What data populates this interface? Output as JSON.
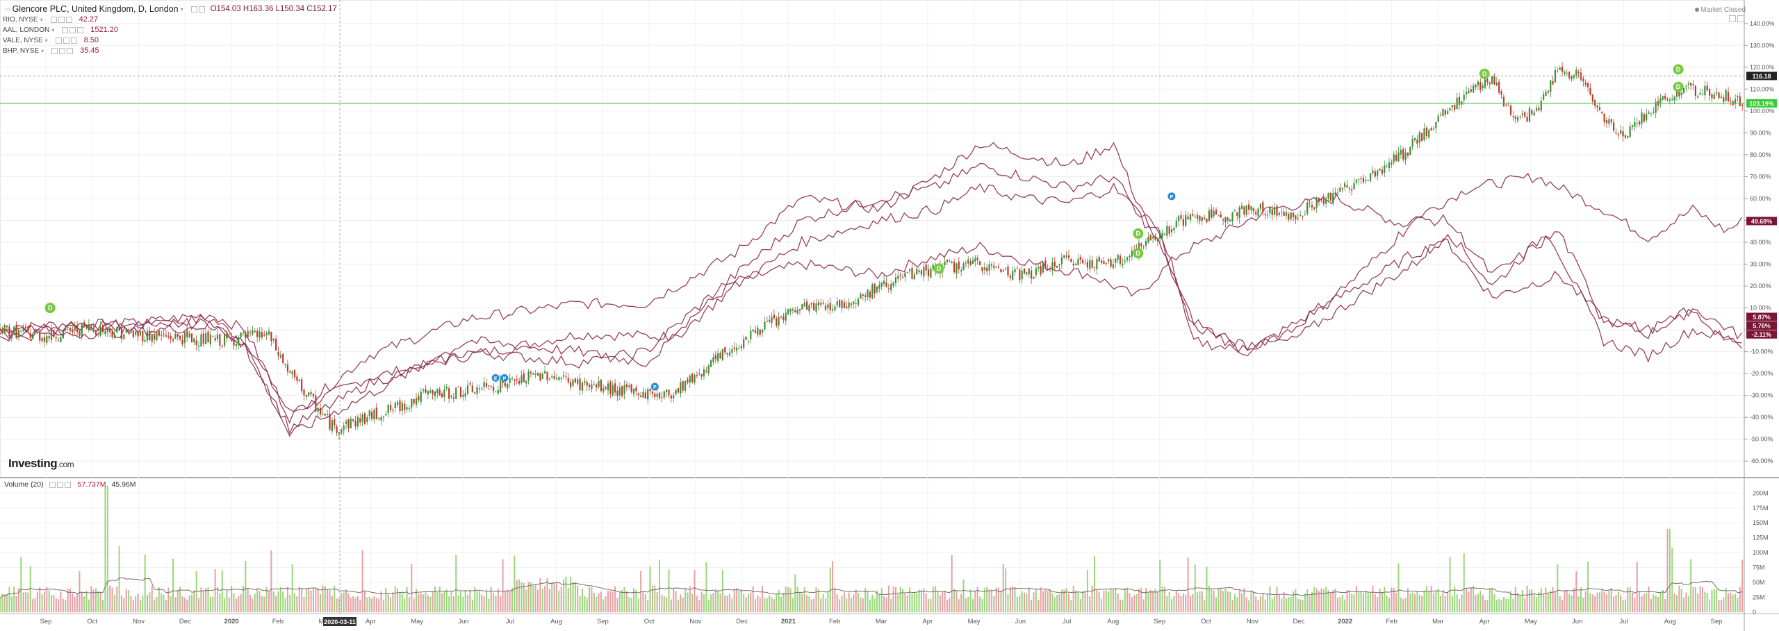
{
  "header": {
    "title": "Glencore PLC, United Kingdom, D, London",
    "ohlc": "O154.03  H163.36  L150.34  C152.17",
    "compare": [
      {
        "symbol": "RIO, NYSE",
        "value": "42.27"
      },
      {
        "symbol": "AAL, LONDON",
        "value": "1521.20"
      },
      {
        "symbol": "VALE, NYSE",
        "value": "8.50"
      },
      {
        "symbol": "BHP, NYSE",
        "value": "35.45"
      }
    ],
    "market_status": "Market Closed"
  },
  "branding": {
    "logo": "Investing",
    "logo_suffix": ".com"
  },
  "volume_panel": {
    "label": "Volume (20)",
    "value1": "57.737M",
    "value2": "45.96M"
  },
  "colors": {
    "up": "#3a8f3a",
    "down": "#c0392b",
    "compare": "#8b2a4a",
    "hline": "#33cc33",
    "event_dividend": "#7ac943",
    "event_blue": "#2a8ad4",
    "vol_up": "#9ad67a",
    "vol_down": "#e6a0a5"
  },
  "chart_data": {
    "type": "line",
    "x_tick_labels": [
      "Sep",
      "Oct",
      "Nov",
      "Dec",
      "2020",
      "Feb",
      "Mar",
      "Apr",
      "May",
      "Jun",
      "Jul",
      "Aug",
      "Sep",
      "Oct",
      "Nov",
      "Dec",
      "2021",
      "Feb",
      "Mar",
      "Apr",
      "May",
      "Jun",
      "Jul",
      "Aug",
      "Sep",
      "Oct",
      "Nov",
      "Dec",
      "2022",
      "Feb",
      "Mar",
      "Apr",
      "May",
      "Jun",
      "Jul",
      "Aug",
      "Sep"
    ],
    "crosshair_date": "2020-03-11",
    "y_ticks": [
      "140.00%",
      "130.00%",
      "120.00%",
      "110.00%",
      "100.00%",
      "90.00%",
      "80.00%",
      "70.00%",
      "60.00%",
      "50.00%",
      "40.00%",
      "30.00%",
      "20.00%",
      "10.00%",
      "0.00%",
      "-10.00%",
      "-20.00%",
      "-30.00%",
      "-40.00%",
      "-50.00%",
      "-60.00%"
    ],
    "ylim": [
      -65,
      145
    ],
    "price_badges": [
      {
        "text": "116.18",
        "y": 116,
        "color": "#222222"
      },
      {
        "text": "103.19%",
        "y": 103.5,
        "color": "#33cc33"
      },
      {
        "text": "49.68%",
        "y": 49.7,
        "color": "#7b1435"
      },
      {
        "text": "5.87%",
        "y": 5.9,
        "color": "#7b1435"
      },
      {
        "text": "5.76%",
        "y": 1.9,
        "color": "#7b1435"
      },
      {
        "text": "-2.11%",
        "y": -2.1,
        "color": "#7b1435"
      }
    ],
    "horizontal_line": 103.5,
    "dashed_line": 116,
    "series": [
      {
        "points": [
          [
            0,
            0
          ],
          [
            60,
            3
          ],
          [
            120,
            2
          ],
          [
            190,
            5
          ],
          [
            220,
            -5
          ],
          [
            260,
            -38
          ],
          [
            330,
            -22
          ],
          [
            420,
            -12
          ],
          [
            520,
            -2
          ],
          [
            600,
            -3
          ],
          [
            660,
            22
          ],
          [
            720,
            30
          ],
          [
            790,
            25
          ],
          [
            830,
            32
          ],
          [
            880,
            38
          ],
          [
            930,
            30
          ],
          [
            980,
            25
          ],
          [
            1020,
            15
          ],
          [
            1060,
            35
          ],
          [
            1090,
            42
          ],
          [
            1140,
            55
          ],
          [
            1200,
            60
          ],
          [
            1260,
            48
          ],
          [
            1320,
            65
          ],
          [
            1380,
            70
          ],
          [
            1440,
            55
          ],
          [
            1480,
            42
          ],
          [
            1520,
            55
          ],
          [
            1550,
            45
          ],
          [
            1565,
            50
          ]
        ]
      },
      {
        "points": [
          [
            0,
            0
          ],
          [
            60,
            2
          ],
          [
            120,
            3
          ],
          [
            190,
            7
          ],
          [
            220,
            0
          ],
          [
            260,
            -40
          ],
          [
            330,
            -12
          ],
          [
            420,
            5
          ],
          [
            520,
            12
          ],
          [
            580,
            12
          ],
          [
            660,
            35
          ],
          [
            720,
            60
          ],
          [
            790,
            55
          ],
          [
            840,
            70
          ],
          [
            880,
            85
          ],
          [
            920,
            80
          ],
          [
            960,
            75
          ],
          [
            1000,
            85
          ],
          [
            1020,
            60
          ],
          [
            1050,
            35
          ],
          [
            1070,
            -5
          ],
          [
            1120,
            -10
          ],
          [
            1160,
            2
          ],
          [
            1220,
            20
          ],
          [
            1270,
            35
          ],
          [
            1300,
            40
          ],
          [
            1340,
            15
          ],
          [
            1400,
            25
          ],
          [
            1440,
            5
          ],
          [
            1480,
            -2
          ],
          [
            1520,
            10
          ],
          [
            1560,
            -2
          ]
        ]
      },
      {
        "points": [
          [
            0,
            -2
          ],
          [
            60,
            0
          ],
          [
            120,
            2
          ],
          [
            190,
            3
          ],
          [
            220,
            -8
          ],
          [
            260,
            -45
          ],
          [
            330,
            -25
          ],
          [
            420,
            -10
          ],
          [
            520,
            -15
          ],
          [
            580,
            -10
          ],
          [
            660,
            25
          ],
          [
            720,
            50
          ],
          [
            790,
            60
          ],
          [
            840,
            65
          ],
          [
            880,
            75
          ],
          [
            920,
            70
          ],
          [
            960,
            65
          ],
          [
            1000,
            70
          ],
          [
            1040,
            40
          ],
          [
            1070,
            5
          ],
          [
            1110,
            -8
          ],
          [
            1160,
            -5
          ],
          [
            1220,
            15
          ],
          [
            1270,
            30
          ],
          [
            1300,
            45
          ],
          [
            1340,
            20
          ],
          [
            1390,
            45
          ],
          [
            1440,
            -5
          ],
          [
            1480,
            -12
          ],
          [
            1520,
            0
          ],
          [
            1560,
            -5
          ]
        ]
      },
      {
        "points": [
          [
            0,
            -3
          ],
          [
            60,
            -2
          ],
          [
            120,
            -1
          ],
          [
            190,
            2
          ],
          [
            220,
            -6
          ],
          [
            260,
            -48
          ],
          [
            330,
            -30
          ],
          [
            420,
            -5
          ],
          [
            520,
            -10
          ],
          [
            580,
            -15
          ],
          [
            660,
            20
          ],
          [
            720,
            40
          ],
          [
            790,
            50
          ],
          [
            840,
            55
          ],
          [
            880,
            65
          ],
          [
            920,
            60
          ],
          [
            960,
            58
          ],
          [
            1000,
            65
          ],
          [
            1040,
            45
          ],
          [
            1070,
            2
          ],
          [
            1120,
            -8
          ],
          [
            1160,
            0
          ],
          [
            1220,
            25
          ],
          [
            1270,
            50
          ],
          [
            1300,
            50
          ],
          [
            1340,
            25
          ],
          [
            1400,
            45
          ],
          [
            1440,
            5
          ],
          [
            1480,
            0
          ],
          [
            1520,
            8
          ],
          [
            1560,
            -8
          ]
        ]
      }
    ],
    "main_line": {
      "points": [
        [
          0,
          0
        ],
        [
          40,
          -3
        ],
        [
          80,
          1
        ],
        [
          120,
          -2
        ],
        [
          170,
          -4
        ],
        [
          200,
          -5
        ],
        [
          240,
          -2
        ],
        [
          260,
          -20
        ],
        [
          300,
          -45
        ],
        [
          330,
          -40
        ],
        [
          360,
          -35
        ],
        [
          380,
          -30
        ],
        [
          420,
          -28
        ],
        [
          460,
          -24
        ],
        [
          490,
          -20
        ],
        [
          520,
          -25
        ],
        [
          560,
          -28
        ],
        [
          600,
          -30
        ],
        [
          640,
          -15
        ],
        [
          680,
          0
        ],
        [
          720,
          10
        ],
        [
          760,
          12
        ],
        [
          800,
          22
        ],
        [
          840,
          28
        ],
        [
          880,
          30
        ],
        [
          920,
          25
        ],
        [
          960,
          32
        ],
        [
          1000,
          30
        ],
        [
          1030,
          40
        ],
        [
          1060,
          50
        ],
        [
          1090,
          52
        ],
        [
          1130,
          55
        ],
        [
          1160,
          52
        ],
        [
          1190,
          60
        ],
        [
          1220,
          68
        ],
        [
          1260,
          80
        ],
        [
          1290,
          95
        ],
        [
          1320,
          110
        ],
        [
          1340,
          115
        ],
        [
          1360,
          95
        ],
        [
          1380,
          100
        ],
        [
          1400,
          120
        ],
        [
          1420,
          115
        ],
        [
          1440,
          95
        ],
        [
          1460,
          90
        ],
        [
          1480,
          100
        ],
        [
          1510,
          110
        ],
        [
          1540,
          108
        ],
        [
          1560,
          105
        ]
      ]
    },
    "events": [
      {
        "x": 45,
        "y": 10,
        "type": "dividend",
        "label": "D"
      },
      {
        "x": 445,
        "y": -22,
        "type": "earnings",
        "label": "E"
      },
      {
        "x": 453,
        "y": -22,
        "type": "earnings",
        "label": "P"
      },
      {
        "x": 588,
        "y": -26,
        "type": "earnings",
        "label": "P"
      },
      {
        "x": 843,
        "y": 28,
        "type": "dividend",
        "label": "D"
      },
      {
        "x": 1022,
        "y": 44,
        "type": "dividend",
        "label": "D"
      },
      {
        "x": 1022,
        "y": 35,
        "type": "dividend",
        "label": "D"
      },
      {
        "x": 1052,
        "y": 61,
        "type": "earnings",
        "label": "P"
      },
      {
        "x": 1333,
        "y": 117,
        "type": "dividend",
        "label": "D"
      },
      {
        "x": 1507,
        "y": 119,
        "type": "dividend",
        "label": "D"
      },
      {
        "x": 1507,
        "y": 111,
        "type": "dividend",
        "label": "D"
      }
    ],
    "volume": {
      "y_ticks": [
        "200M",
        "175M",
        "150M",
        "125M",
        "100M",
        "75M",
        "50M",
        "25M",
        "0"
      ],
      "ylim": [
        0,
        212
      ]
    }
  }
}
